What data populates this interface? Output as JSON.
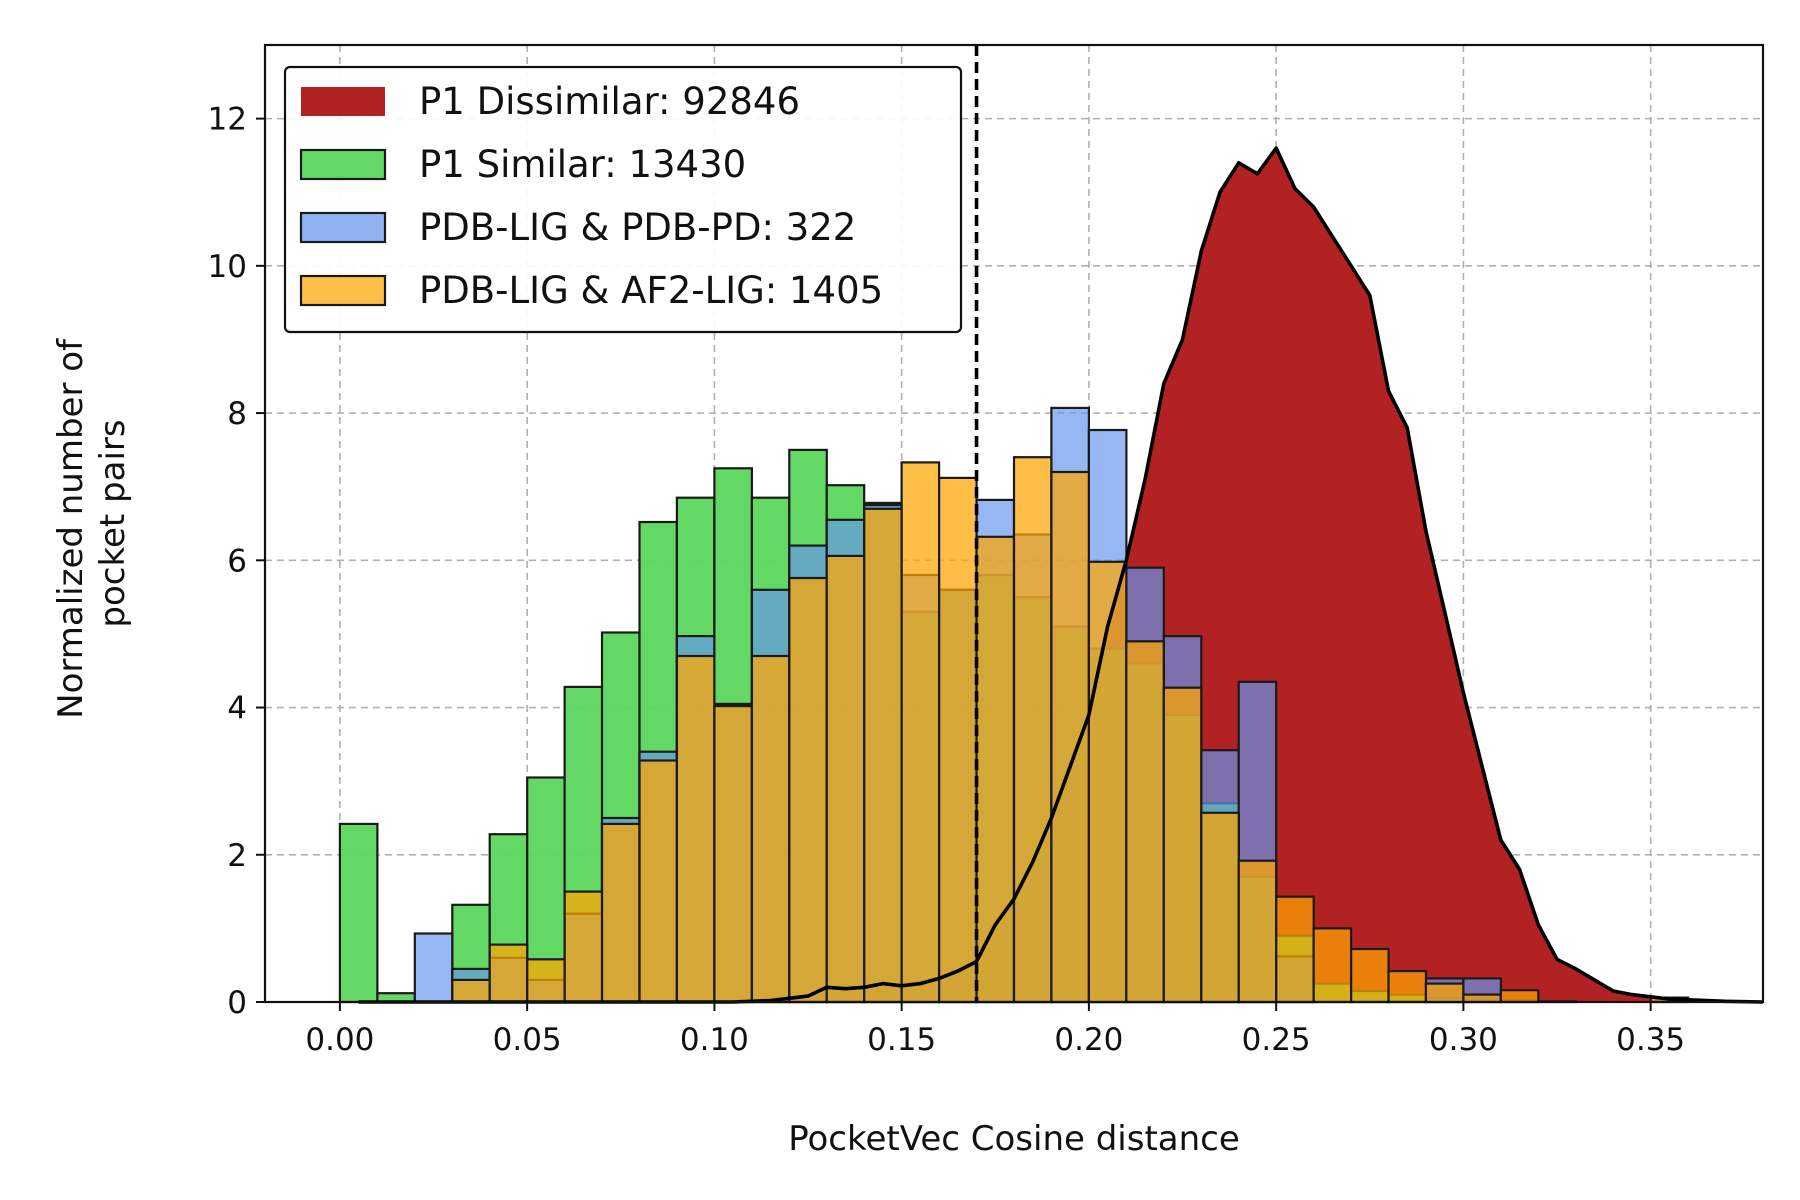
{
  "chart_data": {
    "type": "bar",
    "title": "",
    "xlabel": "PocketVec Cosine distance",
    "ylabel_lines": [
      "Normalized number of",
      "pocket pairs"
    ],
    "xlim": [
      -0.02,
      0.38
    ],
    "ylim": [
      0,
      13
    ],
    "xticks": [
      0.0,
      0.05,
      0.1,
      0.15,
      0.2,
      0.25,
      0.3,
      0.35
    ],
    "xtick_labels": [
      "0.00",
      "0.05",
      "0.10",
      "0.15",
      "0.20",
      "0.25",
      "0.30",
      "0.35"
    ],
    "yticks": [
      0,
      2,
      4,
      6,
      8,
      10,
      12
    ],
    "ytick_labels": [
      "0",
      "2",
      "4",
      "6",
      "8",
      "10",
      "12"
    ],
    "grid": true,
    "legend_position": "top-left",
    "threshold_x": 0.17,
    "bin_width": 0.01,
    "bin_edges_start": 0.0,
    "series": [
      {
        "name": "P1 Dissimilar: 92846",
        "kind": "area",
        "color": "#b22222",
        "x": [
          0.005,
          0.015,
          0.025,
          0.035,
          0.045,
          0.055,
          0.065,
          0.075,
          0.085,
          0.095,
          0.105,
          0.115,
          0.12,
          0.125,
          0.13,
          0.135,
          0.14,
          0.145,
          0.15,
          0.155,
          0.16,
          0.165,
          0.17,
          0.175,
          0.18,
          0.185,
          0.19,
          0.195,
          0.2,
          0.205,
          0.21,
          0.215,
          0.22,
          0.225,
          0.23,
          0.235,
          0.24,
          0.245,
          0.25,
          0.255,
          0.26,
          0.265,
          0.27,
          0.275,
          0.28,
          0.285,
          0.29,
          0.295,
          0.3,
          0.305,
          0.31,
          0.315,
          0.32,
          0.325,
          0.33,
          0.335,
          0.34,
          0.345,
          0.35,
          0.355,
          0.36,
          0.365,
          0.37,
          0.38
        ],
        "values": [
          0.0,
          0.0,
          0.0,
          0.0,
          0.0,
          0.0,
          0.0,
          0.0,
          0.0,
          0.0,
          0.0,
          0.02,
          0.05,
          0.08,
          0.2,
          0.18,
          0.2,
          0.25,
          0.22,
          0.25,
          0.32,
          0.42,
          0.55,
          1.05,
          1.4,
          1.9,
          2.5,
          3.2,
          3.9,
          5.1,
          6.0,
          7.1,
          8.4,
          9.0,
          10.2,
          11.0,
          11.4,
          11.25,
          11.6,
          11.05,
          10.8,
          10.4,
          10.0,
          9.6,
          8.3,
          7.8,
          6.4,
          5.3,
          4.2,
          3.2,
          2.2,
          1.8,
          1.05,
          0.58,
          0.45,
          0.3,
          0.15,
          0.1,
          0.07,
          0.04,
          0.03,
          0.02,
          0.01,
          0.0
        ]
      },
      {
        "name": "P1 Similar: 13430",
        "kind": "bar",
        "color": "#5cd65c",
        "values": [
          2.42,
          0.12,
          0.0,
          1.32,
          2.28,
          3.05,
          4.28,
          5.02,
          6.52,
          6.85,
          7.25,
          6.85,
          7.5,
          7.02,
          6.78,
          5.3,
          5.6,
          5.8,
          5.5,
          5.1,
          4.8,
          4.6,
          3.9,
          2.7,
          1.7,
          0.9,
          0.25,
          0.15,
          0.1,
          0.05,
          0.03,
          0.02,
          0.01,
          0.0,
          0.0,
          0.0,
          0.0
        ]
      },
      {
        "name": "PDB-LIG & PDB-PD: 322",
        "kind": "bar",
        "color": "#6495ed",
        "values": [
          0.0,
          0.0,
          0.93,
          0.45,
          0.6,
          0.3,
          1.2,
          2.5,
          3.4,
          4.97,
          4.05,
          5.6,
          6.2,
          6.55,
          6.75,
          5.8,
          5.6,
          6.82,
          6.35,
          8.07,
          7.77,
          5.9,
          4.97,
          3.42,
          4.35,
          0.62,
          0.0,
          0.0,
          0.0,
          0.32,
          0.32,
          0.0,
          0.0,
          0.0,
          0.0,
          0.0,
          0.0
        ]
      },
      {
        "name": "PDB-LIG & AF2-LIG: 1405",
        "kind": "bar",
        "color": "#ffa500",
        "values": [
          0.0,
          0.0,
          0.0,
          0.3,
          0.78,
          0.58,
          1.5,
          2.42,
          3.28,
          4.7,
          4.02,
          4.7,
          5.76,
          6.06,
          6.7,
          7.33,
          7.12,
          6.32,
          7.4,
          7.2,
          5.98,
          4.9,
          4.27,
          2.57,
          1.92,
          1.43,
          1.0,
          0.72,
          0.42,
          0.25,
          0.1,
          0.16,
          0.0,
          0.0,
          0.0,
          0.06,
          0.0
        ]
      }
    ]
  }
}
